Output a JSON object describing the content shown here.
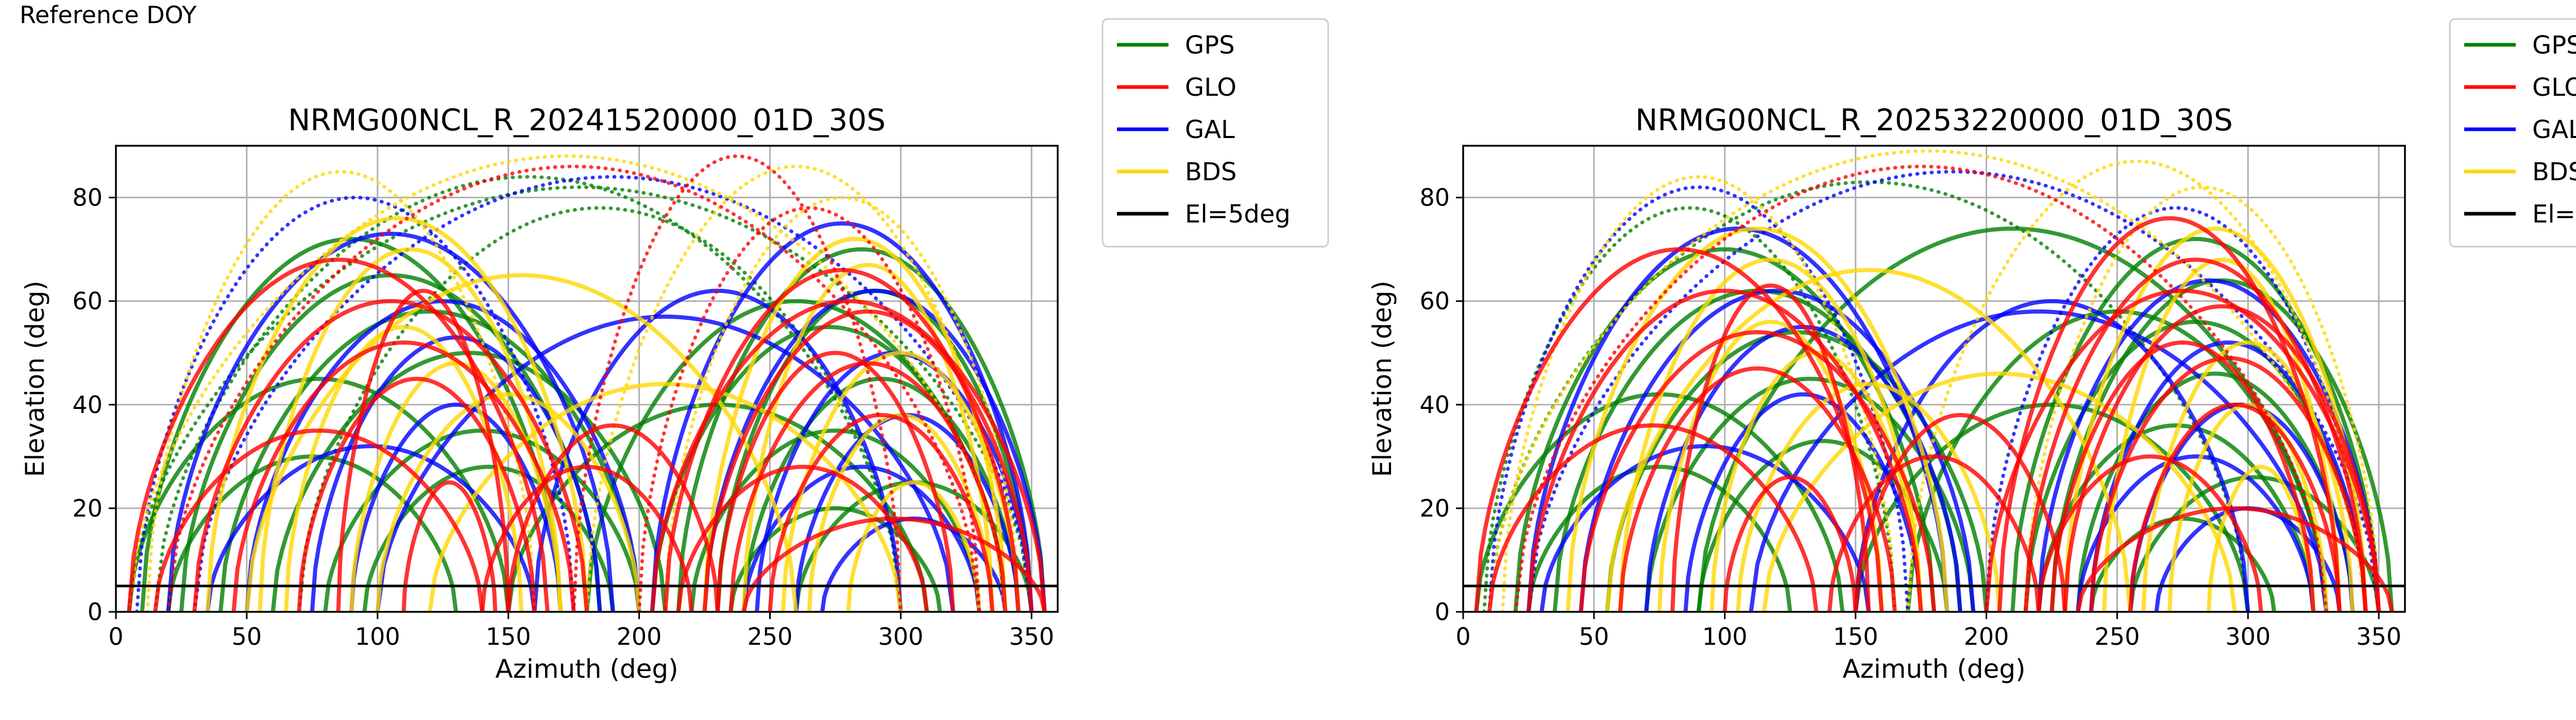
{
  "figure": {
    "title": "Reference DOY"
  },
  "legend_entries": [
    {
      "label": "GPS",
      "color": "#008000"
    },
    {
      "label": "GLO",
      "color": "#ff0000"
    },
    {
      "label": "GAL",
      "color": "#0000ff"
    },
    {
      "label": "BDS",
      "color": "#ffd700"
    },
    {
      "label": "El=5deg",
      "color": "#000000"
    }
  ],
  "chart_data": [
    {
      "type": "scatter",
      "title": "NRMG00NCL_R_20241520000_01D_30S",
      "xlabel": "Azimuth (deg)",
      "ylabel": "Elevation (deg)",
      "xlim": [
        0,
        360
      ],
      "ylim": [
        0,
        90
      ],
      "xticks": [
        0,
        50,
        100,
        150,
        200,
        250,
        300,
        350
      ],
      "yticks": [
        0,
        20,
        40,
        60,
        80
      ],
      "grid": true,
      "legend_placement": "outside-upper-right",
      "reference_line": {
        "label": "El=5deg",
        "elevation": 5
      },
      "series_arcs": {
        "GPS": [
          [
            10,
            170,
            72
          ],
          [
            25,
            185,
            65
          ],
          [
            40,
            200,
            58
          ],
          [
            60,
            210,
            50
          ],
          [
            80,
            200,
            35
          ],
          [
            95,
            190,
            28
          ],
          [
            5,
            150,
            45
          ],
          [
            20,
            130,
            30
          ],
          [
            215,
            355,
            70
          ],
          [
            230,
            350,
            62
          ],
          [
            205,
            340,
            55
          ],
          [
            240,
            345,
            45
          ],
          [
            220,
            330,
            35
          ],
          [
            260,
            350,
            25
          ],
          [
            235,
            315,
            20
          ],
          [
            15,
            300,
            84
          ],
          [
            70,
            300,
            78
          ],
          [
            180,
            340,
            60
          ],
          [
            5,
            350,
            82
          ],
          [
            150,
            310,
            40
          ]
        ],
        "GLO": [
          [
            5,
            165,
            68
          ],
          [
            30,
            180,
            60
          ],
          [
            45,
            175,
            52
          ],
          [
            70,
            160,
            45
          ],
          [
            85,
            150,
            62
          ],
          [
            110,
            145,
            25
          ],
          [
            15,
            140,
            35
          ],
          [
            200,
            330,
            78
          ],
          [
            210,
            345,
            66
          ],
          [
            225,
            350,
            58
          ],
          [
            235,
            340,
            48
          ],
          [
            250,
            335,
            38
          ],
          [
            215,
            310,
            28
          ],
          [
            150,
            230,
            36
          ],
          [
            140,
            220,
            28
          ],
          [
            175,
            300,
            88
          ],
          [
            20,
            330,
            86
          ],
          [
            240,
            355,
            18
          ],
          [
            230,
            320,
            50
          ],
          [
            205,
            355,
            60
          ]
        ],
        "GAL": [
          [
            8,
            175,
            80
          ],
          [
            20,
            190,
            73
          ],
          [
            50,
            200,
            60
          ],
          [
            75,
            185,
            53
          ],
          [
            90,
            170,
            40
          ],
          [
            35,
            160,
            32
          ],
          [
            205,
            350,
            75
          ],
          [
            225,
            355,
            62
          ],
          [
            245,
            350,
            50
          ],
          [
            260,
            345,
            38
          ],
          [
            240,
            330,
            28
          ],
          [
            270,
            340,
            18
          ],
          [
            100,
            320,
            57
          ],
          [
            160,
            300,
            62
          ],
          [
            30,
            350,
            84
          ]
        ],
        "BDS": [
          [
            12,
            160,
            85
          ],
          [
            35,
            180,
            76
          ],
          [
            55,
            170,
            70
          ],
          [
            65,
            155,
            55
          ],
          [
            90,
            170,
            48
          ],
          [
            100,
            200,
            42
          ],
          [
            210,
            345,
            80
          ],
          [
            225,
            340,
            72
          ],
          [
            240,
            335,
            67
          ],
          [
            255,
            345,
            50
          ],
          [
            265,
            335,
            38
          ],
          [
            280,
            330,
            25
          ],
          [
            180,
            340,
            86
          ],
          [
            5,
            340,
            88
          ],
          [
            120,
            300,
            44
          ],
          [
            50,
            260,
            65
          ]
        ]
      }
    },
    {
      "type": "scatter",
      "title": "NRMG00NCL_R_20253220000_01D_30S",
      "xlabel": "Azimuth (deg)",
      "ylabel": "Elevation (deg)",
      "xlim": [
        0,
        360
      ],
      "ylim": [
        0,
        90
      ],
      "xticks": [
        0,
        50,
        100,
        150,
        200,
        250,
        300,
        350
      ],
      "yticks": [
        0,
        20,
        40,
        60,
        80
      ],
      "grid": true,
      "legend_placement": "outside-upper-right",
      "reference_line": {
        "label": "El=5deg",
        "elevation": 5
      },
      "series_arcs": {
        "GPS": [
          [
            8,
            165,
            78
          ],
          [
            20,
            180,
            70
          ],
          [
            35,
            190,
            62
          ],
          [
            55,
            200,
            54
          ],
          [
            70,
            195,
            45
          ],
          [
            90,
            185,
            33
          ],
          [
            5,
            145,
            42
          ],
          [
            25,
            125,
            28
          ],
          [
            210,
            350,
            72
          ],
          [
            225,
            355,
            64
          ],
          [
            215,
            345,
            56
          ],
          [
            235,
            340,
            46
          ],
          [
            220,
            325,
            36
          ],
          [
            255,
            350,
            26
          ],
          [
            240,
            310,
            18
          ],
          [
            10,
            300,
            83
          ],
          [
            90,
            330,
            74
          ],
          [
            170,
            330,
            58
          ],
          [
            150,
            300,
            40
          ]
        ],
        "GLO": [
          [
            5,
            160,
            70
          ],
          [
            25,
            175,
            62
          ],
          [
            45,
            180,
            54
          ],
          [
            60,
            165,
            47
          ],
          [
            80,
            155,
            63
          ],
          [
            100,
            150,
            26
          ],
          [
            10,
            135,
            36
          ],
          [
            205,
            335,
            76
          ],
          [
            215,
            345,
            68
          ],
          [
            230,
            350,
            59
          ],
          [
            240,
            345,
            49
          ],
          [
            255,
            335,
            40
          ],
          [
            220,
            305,
            30
          ],
          [
            150,
            230,
            38
          ],
          [
            140,
            220,
            30
          ],
          [
            20,
            330,
            86
          ],
          [
            235,
            355,
            20
          ],
          [
            225,
            325,
            52
          ],
          [
            200,
            350,
            62
          ]
        ],
        "GAL": [
          [
            10,
            170,
            82
          ],
          [
            25,
            185,
            74
          ],
          [
            45,
            195,
            62
          ],
          [
            70,
            190,
            55
          ],
          [
            85,
            175,
            42
          ],
          [
            30,
            155,
            32
          ],
          [
            200,
            345,
            78
          ],
          [
            220,
            350,
            64
          ],
          [
            240,
            345,
            52
          ],
          [
            255,
            340,
            40
          ],
          [
            235,
            325,
            30
          ],
          [
            265,
            335,
            20
          ],
          [
            110,
            330,
            58
          ],
          [
            150,
            300,
            60
          ],
          [
            25,
            350,
            85
          ]
        ],
        "BDS": [
          [
            15,
            165,
            84
          ],
          [
            40,
            185,
            74
          ],
          [
            60,
            175,
            68
          ],
          [
            75,
            160,
            56
          ],
          [
            95,
            175,
            50
          ],
          [
            105,
            205,
            44
          ],
          [
            215,
            350,
            82
          ],
          [
            230,
            345,
            74
          ],
          [
            245,
            335,
            68
          ],
          [
            260,
            340,
            52
          ],
          [
            270,
            330,
            40
          ],
          [
            285,
            325,
            28
          ],
          [
            170,
            345,
            87
          ],
          [
            10,
            345,
            89
          ],
          [
            115,
            295,
            46
          ],
          [
            55,
            255,
            66
          ]
        ]
      }
    }
  ]
}
